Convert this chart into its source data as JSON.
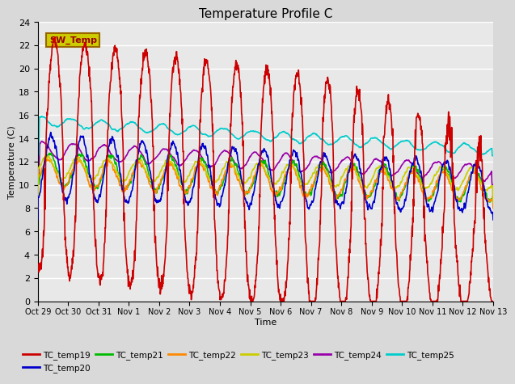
{
  "title": "Temperature Profile C",
  "xlabel": "Time",
  "ylabel": "Temperature (C)",
  "ylim": [
    0,
    24
  ],
  "background_color": "#d9d9d9",
  "plot_bg_color": "#e8e8e8",
  "grid_color": "#ffffff",
  "series": {
    "TC_temp19": {
      "color": "#cc0000",
      "lw": 1.2
    },
    "TC_temp20": {
      "color": "#0000cc",
      "lw": 1.2
    },
    "TC_temp21": {
      "color": "#00bb00",
      "lw": 1.2
    },
    "TC_temp22": {
      "color": "#ff8800",
      "lw": 1.2
    },
    "TC_temp23": {
      "color": "#cccc00",
      "lw": 1.2
    },
    "TC_temp24": {
      "color": "#9900aa",
      "lw": 1.2
    },
    "TC_temp25": {
      "color": "#00cccc",
      "lw": 1.2
    }
  },
  "xtick_labels": [
    "Oct 29",
    "Oct 30",
    "Oct 31",
    "Nov 1",
    "Nov 2",
    "Nov 3",
    "Nov 4",
    "Nov 5",
    "Nov 6",
    "Nov 7",
    "Nov 8",
    "Nov 9",
    "Nov 10",
    "Nov 11",
    "Nov 12",
    "Nov 13"
  ],
  "sw_temp_label": "SW_Temp",
  "sw_temp_bg": "#cccc00",
  "sw_temp_edge": "#996600",
  "sw_temp_text_color": "#990000",
  "n_days": 15,
  "pts_per_day": 96
}
